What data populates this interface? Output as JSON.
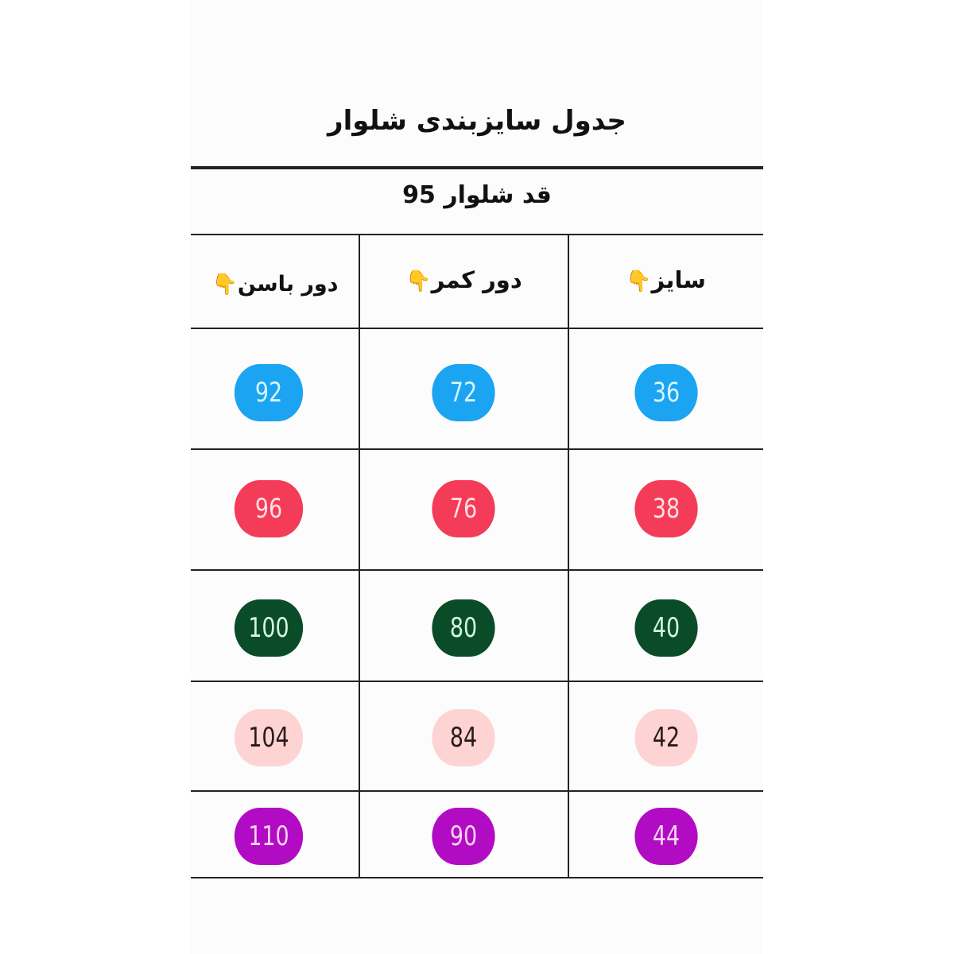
{
  "title": "جدول سایزبندی شلوار",
  "subtitle": "قد شلوار 95",
  "columns": [
    {
      "label": "سایز",
      "icon": "pointing-down-hand-icon",
      "emoji": "👇"
    },
    {
      "label": "دور کمر",
      "icon": "pointing-down-hand-icon",
      "emoji": "👇"
    },
    {
      "label": "دور باسن",
      "icon": "pointing-down-hand-icon",
      "emoji": "👇"
    }
  ],
  "rows": [
    {
      "size": "36",
      "waist": "72",
      "hip": "92",
      "bg": "#1ba4f1",
      "fg": "#d8f4ff"
    },
    {
      "size": "38",
      "waist": "76",
      "hip": "96",
      "bg": "#f43b57",
      "fg": "#ffe0e4"
    },
    {
      "size": "40",
      "waist": "80",
      "hip": "100",
      "bg": "#0a4c27",
      "fg": "#d4f5dc"
    },
    {
      "size": "42",
      "waist": "84",
      "hip": "104",
      "bg": "#fdd3d3",
      "fg": "#2a1a1a"
    },
    {
      "size": "44",
      "waist": "90",
      "hip": "110",
      "bg": "#b10cc3",
      "fg": "#fbd4f6"
    }
  ]
}
